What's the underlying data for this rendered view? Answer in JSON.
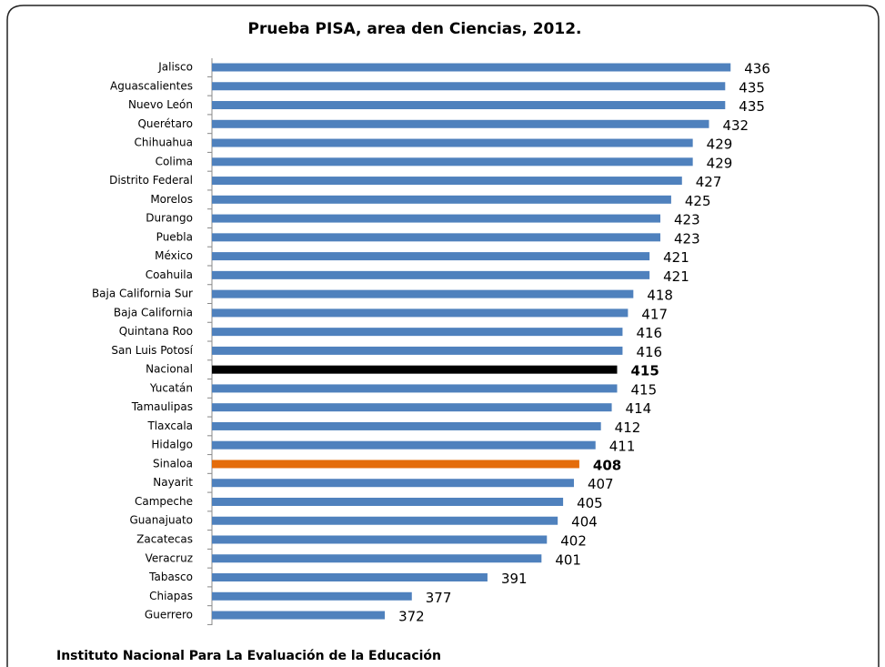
{
  "chart_data": {
    "type": "barh",
    "title": "Prueba PISA, area den Ciencias, 2012.",
    "source": "Instituto Nacional  Para La Evaluación  de la Educación",
    "categories": [
      "Jalisco",
      "Aguascalientes",
      "Nuevo León",
      "Querétaro",
      "Chihuahua",
      "Colima",
      "Distrito Federal",
      "Morelos",
      "Durango",
      "Puebla",
      "México",
      "Coahuila",
      "Baja California Sur",
      "Baja California",
      "Quintana Roo",
      "San Luis Potosí",
      "Nacional",
      "Yucatán",
      "Tamaulipas",
      "Tlaxcala",
      "Hidalgo",
      "Sinaloa",
      "Nayarit",
      "Campeche",
      "Guanajuato",
      "Zacatecas",
      "Veracruz",
      "Tabasco",
      "Chiapas",
      "Guerrero"
    ],
    "values": [
      436,
      435,
      435,
      432,
      429,
      429,
      427,
      425,
      423,
      423,
      421,
      421,
      418,
      417,
      416,
      416,
      415,
      415,
      414,
      412,
      411,
      408,
      407,
      405,
      404,
      402,
      401,
      391,
      377,
      372
    ],
    "color": "#4f81bd",
    "colors": [
      "#4f81bd",
      "#4f81bd",
      "#4f81bd",
      "#4f81bd",
      "#4f81bd",
      "#4f81bd",
      "#4f81bd",
      "#4f81bd",
      "#4f81bd",
      "#4f81bd",
      "#4f81bd",
      "#4f81bd",
      "#4f81bd",
      "#4f81bd",
      "#4f81bd",
      "#4f81bd",
      "#000000",
      "#4f81bd",
      "#4f81bd",
      "#4f81bd",
      "#4f81bd",
      "#e46c0a",
      "#4f81bd",
      "#4f81bd",
      "#4f81bd",
      "#4f81bd",
      "#4f81bd",
      "#4f81bd",
      "#4f81bd",
      "#4f81bd"
    ],
    "xlim": [
      340,
      450
    ]
  }
}
